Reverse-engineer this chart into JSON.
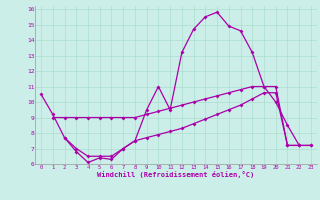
{
  "xlabel": "Windchill (Refroidissement éolien,°C)",
  "background_color": "#cceee8",
  "grid_color": "#aaddcc",
  "line_color": "#aa00aa",
  "xlim": [
    -0.5,
    23.5
  ],
  "ylim": [
    6,
    16.2
  ],
  "xticks": [
    0,
    1,
    2,
    3,
    4,
    5,
    6,
    7,
    8,
    9,
    10,
    11,
    12,
    13,
    14,
    15,
    16,
    17,
    18,
    19,
    20,
    21,
    22,
    23
  ],
  "yticks": [
    6,
    7,
    8,
    9,
    10,
    11,
    12,
    13,
    14,
    15,
    16
  ],
  "line1_x": [
    0,
    1,
    2,
    3,
    4,
    5,
    6,
    7,
    8,
    9,
    10,
    11,
    12,
    13,
    14,
    15,
    16,
    17,
    18,
    19,
    20,
    21,
    22
  ],
  "line1_y": [
    10.5,
    9.2,
    7.7,
    6.8,
    6.1,
    6.4,
    6.3,
    7.0,
    7.5,
    9.5,
    11.0,
    9.5,
    13.2,
    14.7,
    15.5,
    15.8,
    14.9,
    14.6,
    13.2,
    11.0,
    10.0,
    8.5,
    7.2
  ],
  "line2_x": [
    1,
    2,
    3,
    4,
    5,
    6,
    7,
    8,
    9,
    10,
    11,
    12,
    13,
    14,
    15,
    16,
    17,
    18,
    19,
    20,
    21,
    22,
    23
  ],
  "line2_y": [
    9.0,
    9.0,
    9.0,
    9.0,
    9.0,
    9.0,
    9.0,
    9.0,
    9.2,
    9.4,
    9.6,
    9.8,
    10.0,
    10.2,
    10.4,
    10.6,
    10.8,
    11.0,
    11.0,
    11.0,
    7.2,
    7.2,
    7.2
  ],
  "line3_x": [
    2,
    3,
    4,
    5,
    6,
    7,
    8,
    9,
    10,
    11,
    12,
    13,
    14,
    15,
    16,
    17,
    18,
    19,
    20,
    21,
    22,
    23
  ],
  "line3_y": [
    7.7,
    7.0,
    6.5,
    6.5,
    6.5,
    7.0,
    7.5,
    7.7,
    7.9,
    8.1,
    8.3,
    8.6,
    8.9,
    9.2,
    9.5,
    9.8,
    10.2,
    10.6,
    10.6,
    7.2,
    7.2,
    7.2
  ]
}
